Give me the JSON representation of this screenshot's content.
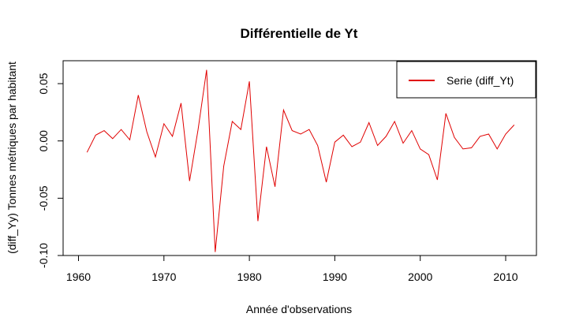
{
  "chart_data": {
    "type": "line",
    "title": "Différentielle de Yt",
    "xlabel": "Année d'observations",
    "ylabel": "(diff_Yy) Tonnes métriques par habitant",
    "xlim": [
      1958.2,
      2013.6
    ],
    "ylim": [
      -0.1,
      0.07
    ],
    "x_ticks": [
      1960,
      1970,
      1980,
      1990,
      2000,
      2010
    ],
    "x_tick_labels": [
      "1960",
      "1970",
      "1980",
      "1990",
      "2000",
      "2010"
    ],
    "y_ticks": [
      -0.1,
      -0.05,
      0.0,
      0.05
    ],
    "y_tick_labels": [
      "-0.10",
      "-0.05",
      "0.00",
      "0.05"
    ],
    "grid": false,
    "legend_position": "top-right",
    "series": [
      {
        "name": "Serie (diff_Yt)",
        "color": "#e00000",
        "x": [
          1961,
          1962,
          1963,
          1964,
          1965,
          1966,
          1967,
          1968,
          1969,
          1970,
          1971,
          1972,
          1973,
          1974,
          1975,
          1976,
          1977,
          1978,
          1979,
          1980,
          1981,
          1982,
          1983,
          1984,
          1985,
          1986,
          1987,
          1988,
          1989,
          1990,
          1991,
          1992,
          1993,
          1994,
          1995,
          1996,
          1997,
          1998,
          1999,
          2000,
          2001,
          2002,
          2003,
          2004,
          2005,
          2006,
          2007,
          2008,
          2009,
          2010,
          2011
        ],
        "values": [
          -0.01,
          0.005,
          0.009,
          0.002,
          0.01,
          0.001,
          0.04,
          0.008,
          -0.014,
          0.015,
          0.004,
          0.033,
          -0.035,
          0.01,
          0.062,
          -0.097,
          -0.022,
          0.017,
          0.01,
          0.052,
          -0.07,
          -0.005,
          -0.04,
          0.027,
          0.009,
          0.006,
          0.01,
          -0.004,
          -0.036,
          -0.001,
          0.005,
          -0.005,
          -0.001,
          0.016,
          -0.004,
          0.004,
          0.017,
          -0.002,
          0.009,
          -0.007,
          -0.012,
          -0.034,
          0.024,
          0.003,
          -0.007,
          -0.006,
          0.004,
          0.006,
          -0.007,
          0.006,
          0.014
        ]
      }
    ]
  }
}
